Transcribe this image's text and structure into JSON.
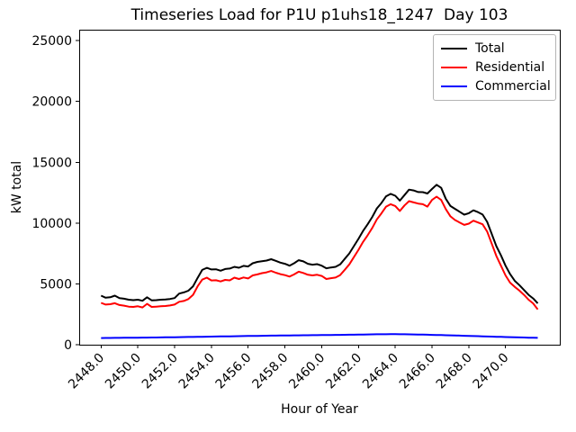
{
  "window": {
    "title": "Timeseries Load for P1U p1uhs18_1247  Day 103"
  },
  "chart_data": {
    "type": "line",
    "title": "Timeseries Load for P1U p1uhs18_1247  Day 103",
    "xlabel": "Hour of Year",
    "ylabel": "kW total",
    "grid": false,
    "xlim": [
      2446.81,
      2472.95
    ],
    "ylim": [
      0,
      25900
    ],
    "x_ticks": [
      2448,
      2450,
      2452,
      2454,
      2456,
      2458,
      2460,
      2462,
      2464,
      2466,
      2468,
      2470
    ],
    "x_tick_labels": [
      "2448.0",
      "2450.0",
      "2452.0",
      "2454.0",
      "2456.0",
      "2458.0",
      "2460.0",
      "2462.0",
      "2464.0",
      "2466.0",
      "2468.0",
      "2470.0"
    ],
    "y_ticks": [
      0,
      5000,
      10000,
      15000,
      20000,
      25000
    ],
    "y_tick_labels": [
      "0",
      "5000",
      "10000",
      "15000",
      "20000",
      "25000"
    ],
    "legend": {
      "position": "upper right",
      "entries": [
        {
          "label": "Total",
          "color": "#000000"
        },
        {
          "label": "Residential",
          "color": "#ff0000"
        },
        {
          "label": "Commercial",
          "color": "#0000ff"
        }
      ]
    },
    "x": [
      2448.0,
      2448.25,
      2448.5,
      2448.75,
      2449.0,
      2449.25,
      2449.5,
      2449.75,
      2450.0,
      2450.25,
      2450.5,
      2450.75,
      2451.0,
      2451.25,
      2451.5,
      2451.75,
      2452.0,
      2452.25,
      2452.5,
      2452.75,
      2453.0,
      2453.25,
      2453.5,
      2453.75,
      2454.0,
      2454.25,
      2454.5,
      2454.75,
      2455.0,
      2455.25,
      2455.5,
      2455.75,
      2456.0,
      2456.25,
      2456.5,
      2456.75,
      2457.0,
      2457.25,
      2457.5,
      2457.75,
      2458.0,
      2458.25,
      2458.5,
      2458.75,
      2459.0,
      2459.25,
      2459.5,
      2459.75,
      2460.0,
      2460.25,
      2460.5,
      2460.75,
      2461.0,
      2461.25,
      2461.5,
      2461.75,
      2462.0,
      2462.25,
      2462.5,
      2462.75,
      2463.0,
      2463.25,
      2463.5,
      2463.75,
      2464.0,
      2464.25,
      2464.5,
      2464.75,
      2465.0,
      2465.25,
      2465.5,
      2465.75,
      2466.0,
      2466.25,
      2466.5,
      2466.75,
      2467.0,
      2467.25,
      2467.5,
      2467.75,
      2468.0,
      2468.25,
      2468.5,
      2468.75,
      2469.0,
      2469.25,
      2469.5,
      2469.75,
      2470.0,
      2470.25,
      2470.5,
      2470.75,
      2471.0,
      2471.25,
      2471.5,
      2471.75
    ],
    "series": [
      {
        "name": "Total",
        "color": "#000000",
        "values": [
          4030,
          3860,
          3900,
          4030,
          3830,
          3780,
          3700,
          3660,
          3700,
          3610,
          3900,
          3650,
          3660,
          3700,
          3720,
          3760,
          3830,
          4200,
          4300,
          4440,
          4800,
          5500,
          6150,
          6320,
          6190,
          6200,
          6080,
          6220,
          6260,
          6400,
          6330,
          6480,
          6430,
          6700,
          6810,
          6860,
          6920,
          7030,
          6900,
          6750,
          6650,
          6500,
          6700,
          6950,
          6850,
          6650,
          6580,
          6620,
          6500,
          6280,
          6350,
          6400,
          6600,
          7050,
          7500,
          8100,
          8700,
          9350,
          9900,
          10500,
          11200,
          11650,
          12200,
          12400,
          12250,
          11850,
          12300,
          12750,
          12680,
          12550,
          12540,
          12430,
          12800,
          13150,
          12900,
          12000,
          11400,
          11170,
          10930,
          10690,
          10810,
          11050,
          10900,
          10700,
          10100,
          9100,
          8100,
          7350,
          6500,
          5800,
          5250,
          4900,
          4500,
          4100,
          3800,
          3400
        ]
      },
      {
        "name": "Residential",
        "color": "#ff0000",
        "values": [
          3440,
          3300,
          3330,
          3410,
          3260,
          3210,
          3130,
          3110,
          3160,
          3060,
          3360,
          3110,
          3130,
          3160,
          3180,
          3230,
          3300,
          3530,
          3600,
          3750,
          4100,
          4800,
          5350,
          5510,
          5280,
          5300,
          5200,
          5330,
          5290,
          5510,
          5400,
          5530,
          5450,
          5700,
          5780,
          5880,
          5950,
          6060,
          5920,
          5800,
          5720,
          5600,
          5780,
          6000,
          5900,
          5750,
          5700,
          5750,
          5650,
          5400,
          5470,
          5520,
          5720,
          6150,
          6600,
          7200,
          7800,
          8450,
          9000,
          9600,
          10300,
          10800,
          11350,
          11550,
          11400,
          11000,
          11450,
          11800,
          11700,
          11600,
          11550,
          11350,
          11900,
          12170,
          11900,
          11150,
          10550,
          10250,
          10050,
          9850,
          9950,
          10200,
          10050,
          9900,
          9300,
          8300,
          7300,
          6500,
          5700,
          5100,
          4750,
          4450,
          4100,
          3700,
          3400,
          2900
        ]
      },
      {
        "name": "Commercial",
        "color": "#0000ff",
        "values": [
          550,
          554,
          558,
          561,
          565,
          569,
          573,
          576,
          580,
          584,
          588,
          591,
          595,
          600,
          605,
          610,
          615,
          621,
          628,
          634,
          640,
          646,
          653,
          659,
          665,
          671,
          678,
          684,
          690,
          696,
          703,
          709,
          715,
          721,
          728,
          734,
          740,
          745,
          750,
          755,
          760,
          764,
          768,
          771,
          775,
          779,
          783,
          786,
          790,
          795,
          800,
          805,
          810,
          815,
          820,
          825,
          830,
          836,
          843,
          849,
          855,
          858,
          860,
          863,
          865,
          860,
          855,
          850,
          845,
          836,
          828,
          819,
          810,
          800,
          790,
          780,
          770,
          759,
          748,
          736,
          725,
          713,
          700,
          688,
          675,
          664,
          653,
          641,
          630,
          620,
          610,
          600,
          590,
          580,
          570,
          560
        ]
      }
    ]
  }
}
